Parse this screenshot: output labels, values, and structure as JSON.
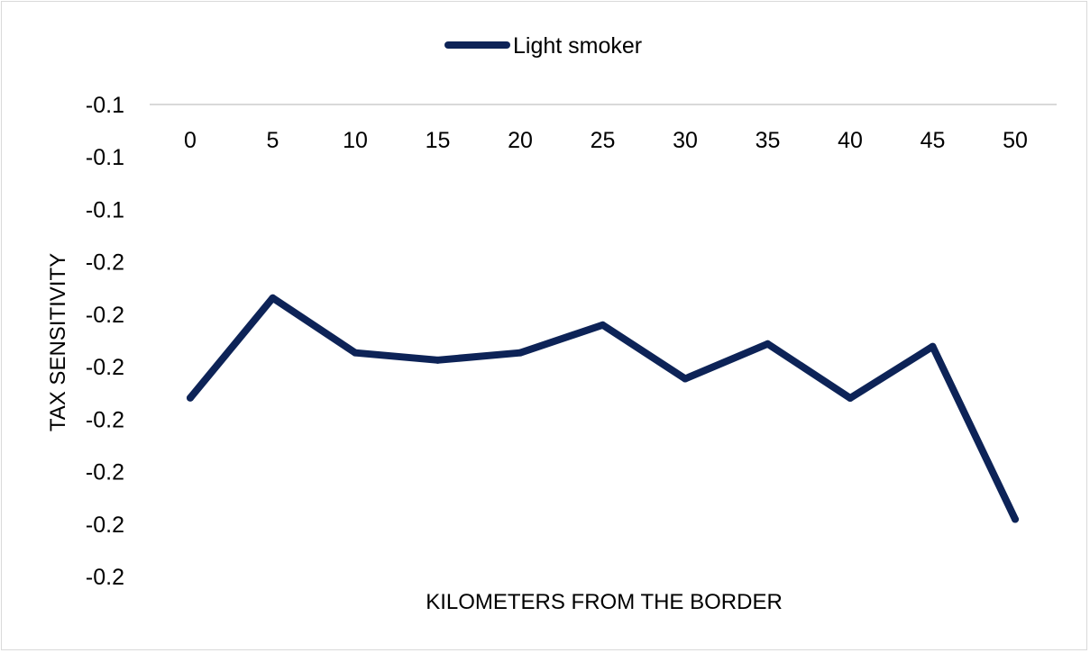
{
  "chart_data": {
    "type": "line",
    "title": "",
    "xlabel": "KILOMETERS FROM THE BORDER",
    "ylabel": "TAX SENSITIVITY",
    "x_axis_position": "top",
    "x_tick_labels": [
      "0",
      "5",
      "10",
      "15",
      "20",
      "25",
      "30",
      "35",
      "40",
      "45",
      "50"
    ],
    "y_tick_labels": [
      "-0.1",
      "-0.1",
      "-0.1",
      "-0.2",
      "-0.2",
      "-0.2",
      "-0.2",
      "-0.2",
      "-0.2",
      "-0.2"
    ],
    "ylim": [
      -0.24,
      -0.06
    ],
    "grid": false,
    "legend_position": "top",
    "series": [
      {
        "name": "Light smoker",
        "color": "#0d2357",
        "x": [
          0,
          5,
          10,
          15,
          20,
          25,
          30,
          35,
          40,
          45,
          50
        ],
        "y": [
          -0.1719,
          -0.1338,
          -0.1547,
          -0.1575,
          -0.1547,
          -0.1441,
          -0.1646,
          -0.1513,
          -0.172,
          -0.1523,
          -0.2182
        ]
      }
    ]
  }
}
